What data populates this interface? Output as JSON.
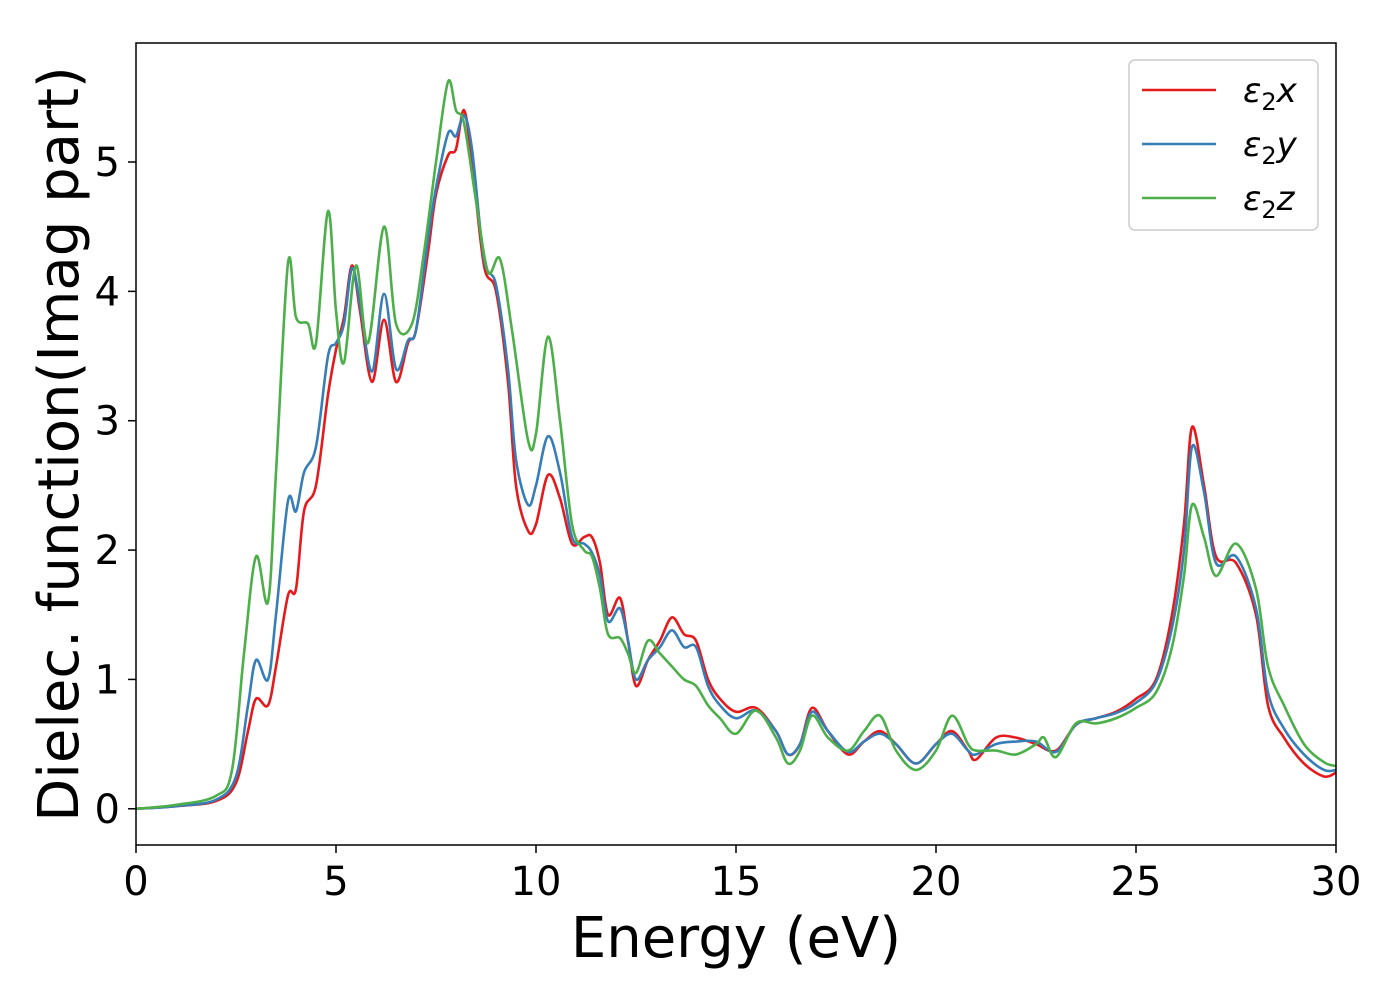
{
  "chart_data": {
    "type": "line",
    "title": "",
    "xlabel": "Energy (eV)",
    "ylabel": "Dielec. function(Imag part)",
    "xlim": [
      0,
      30
    ],
    "ylim": [
      -0.28,
      5.92
    ],
    "xticks": [
      "0",
      "5",
      "10",
      "15",
      "20",
      "25",
      "30"
    ],
    "yticks": [
      "0",
      "1",
      "2",
      "3",
      "4",
      "5"
    ],
    "grid": false,
    "legend_position": "top-right",
    "series": [
      {
        "name": "ε₂x",
        "label_base": "ε",
        "label_sub": "2",
        "label_suffix": "x",
        "color": "#e41a1c",
        "points": [
          [
            0,
            0
          ],
          [
            1,
            0.02
          ],
          [
            2,
            0.06
          ],
          [
            2.5,
            0.2
          ],
          [
            2.8,
            0.6
          ],
          [
            3.0,
            0.85
          ],
          [
            3.3,
            0.8
          ],
          [
            3.5,
            1.1
          ],
          [
            3.8,
            1.65
          ],
          [
            4.0,
            1.7
          ],
          [
            4.2,
            2.3
          ],
          [
            4.5,
            2.5
          ],
          [
            4.8,
            3.2
          ],
          [
            5.0,
            3.55
          ],
          [
            5.2,
            3.8
          ],
          [
            5.4,
            4.2
          ],
          [
            5.6,
            3.85
          ],
          [
            5.9,
            3.3
          ],
          [
            6.2,
            3.78
          ],
          [
            6.5,
            3.3
          ],
          [
            6.8,
            3.6
          ],
          [
            7.0,
            3.7
          ],
          [
            7.3,
            4.3
          ],
          [
            7.5,
            4.75
          ],
          [
            7.8,
            5.05
          ],
          [
            8.0,
            5.1
          ],
          [
            8.2,
            5.4
          ],
          [
            8.4,
            5.0
          ],
          [
            8.7,
            4.2
          ],
          [
            9.0,
            4.0
          ],
          [
            9.3,
            3.3
          ],
          [
            9.5,
            2.5
          ],
          [
            9.8,
            2.15
          ],
          [
            10.0,
            2.2
          ],
          [
            10.3,
            2.58
          ],
          [
            10.6,
            2.4
          ],
          [
            10.9,
            2.05
          ],
          [
            11.2,
            2.1
          ],
          [
            11.4,
            2.1
          ],
          [
            11.6,
            1.9
          ],
          [
            11.8,
            1.5
          ],
          [
            12.1,
            1.63
          ],
          [
            12.3,
            1.3
          ],
          [
            12.5,
            0.95
          ],
          [
            12.8,
            1.15
          ],
          [
            13.1,
            1.3
          ],
          [
            13.4,
            1.48
          ],
          [
            13.7,
            1.35
          ],
          [
            14.0,
            1.3
          ],
          [
            14.3,
            1.0
          ],
          [
            14.6,
            0.85
          ],
          [
            15.0,
            0.75
          ],
          [
            15.5,
            0.78
          ],
          [
            16.0,
            0.6
          ],
          [
            16.3,
            0.42
          ],
          [
            16.6,
            0.5
          ],
          [
            16.9,
            0.78
          ],
          [
            17.3,
            0.6
          ],
          [
            17.8,
            0.42
          ],
          [
            18.2,
            0.52
          ],
          [
            18.6,
            0.6
          ],
          [
            19.0,
            0.5
          ],
          [
            19.5,
            0.35
          ],
          [
            20.0,
            0.5
          ],
          [
            20.4,
            0.6
          ],
          [
            20.8,
            0.45
          ],
          [
            21.0,
            0.38
          ],
          [
            21.5,
            0.55
          ],
          [
            22.0,
            0.55
          ],
          [
            22.5,
            0.5
          ],
          [
            23.0,
            0.45
          ],
          [
            23.5,
            0.65
          ],
          [
            24.0,
            0.7
          ],
          [
            24.5,
            0.75
          ],
          [
            25.0,
            0.85
          ],
          [
            25.5,
            1.0
          ],
          [
            25.9,
            1.5
          ],
          [
            26.2,
            2.2
          ],
          [
            26.4,
            2.95
          ],
          [
            26.7,
            2.5
          ],
          [
            27.0,
            1.95
          ],
          [
            27.5,
            1.9
          ],
          [
            28.0,
            1.5
          ],
          [
            28.3,
            0.8
          ],
          [
            28.7,
            0.55
          ],
          [
            29.2,
            0.35
          ],
          [
            29.7,
            0.25
          ],
          [
            30.0,
            0.28
          ]
        ]
      },
      {
        "name": "ε₂y",
        "label_base": "ε",
        "label_sub": "2",
        "label_suffix": "y",
        "color": "#377eb8",
        "points": [
          [
            0,
            0
          ],
          [
            1,
            0.02
          ],
          [
            2,
            0.07
          ],
          [
            2.5,
            0.25
          ],
          [
            2.8,
            0.8
          ],
          [
            3.0,
            1.15
          ],
          [
            3.3,
            1.0
          ],
          [
            3.5,
            1.5
          ],
          [
            3.8,
            2.38
          ],
          [
            4.0,
            2.3
          ],
          [
            4.2,
            2.6
          ],
          [
            4.5,
            2.8
          ],
          [
            4.8,
            3.5
          ],
          [
            5.0,
            3.6
          ],
          [
            5.2,
            3.75
          ],
          [
            5.4,
            4.18
          ],
          [
            5.6,
            3.9
          ],
          [
            5.9,
            3.38
          ],
          [
            6.2,
            3.98
          ],
          [
            6.5,
            3.4
          ],
          [
            6.8,
            3.62
          ],
          [
            7.0,
            3.7
          ],
          [
            7.3,
            4.4
          ],
          [
            7.5,
            4.8
          ],
          [
            7.8,
            5.22
          ],
          [
            8.0,
            5.2
          ],
          [
            8.2,
            5.36
          ],
          [
            8.4,
            5.1
          ],
          [
            8.7,
            4.25
          ],
          [
            9.0,
            4.05
          ],
          [
            9.3,
            3.4
          ],
          [
            9.5,
            2.7
          ],
          [
            9.8,
            2.35
          ],
          [
            10.0,
            2.5
          ],
          [
            10.3,
            2.88
          ],
          [
            10.6,
            2.6
          ],
          [
            10.9,
            2.1
          ],
          [
            11.2,
            2.05
          ],
          [
            11.4,
            1.98
          ],
          [
            11.6,
            1.8
          ],
          [
            11.8,
            1.45
          ],
          [
            12.1,
            1.55
          ],
          [
            12.3,
            1.3
          ],
          [
            12.5,
            1.0
          ],
          [
            12.8,
            1.15
          ],
          [
            13.1,
            1.25
          ],
          [
            13.4,
            1.38
          ],
          [
            13.7,
            1.25
          ],
          [
            14.0,
            1.25
          ],
          [
            14.3,
            0.95
          ],
          [
            14.6,
            0.8
          ],
          [
            15.0,
            0.7
          ],
          [
            15.5,
            0.76
          ],
          [
            16.0,
            0.6
          ],
          [
            16.3,
            0.42
          ],
          [
            16.6,
            0.5
          ],
          [
            16.9,
            0.75
          ],
          [
            17.3,
            0.6
          ],
          [
            17.8,
            0.44
          ],
          [
            18.2,
            0.52
          ],
          [
            18.6,
            0.58
          ],
          [
            19.0,
            0.5
          ],
          [
            19.5,
            0.35
          ],
          [
            20.0,
            0.5
          ],
          [
            20.4,
            0.58
          ],
          [
            20.8,
            0.45
          ],
          [
            21.0,
            0.42
          ],
          [
            21.5,
            0.5
          ],
          [
            22.0,
            0.52
          ],
          [
            22.5,
            0.52
          ],
          [
            23.0,
            0.44
          ],
          [
            23.5,
            0.65
          ],
          [
            24.0,
            0.7
          ],
          [
            24.5,
            0.74
          ],
          [
            25.0,
            0.82
          ],
          [
            25.5,
            0.98
          ],
          [
            25.9,
            1.4
          ],
          [
            26.2,
            2.0
          ],
          [
            26.4,
            2.8
          ],
          [
            26.7,
            2.45
          ],
          [
            27.0,
            1.9
          ],
          [
            27.5,
            1.95
          ],
          [
            28.0,
            1.55
          ],
          [
            28.3,
            0.9
          ],
          [
            28.7,
            0.62
          ],
          [
            29.2,
            0.42
          ],
          [
            29.7,
            0.3
          ],
          [
            30.0,
            0.3
          ]
        ]
      },
      {
        "name": "ε₂z",
        "label_base": "ε",
        "label_sub": "2",
        "label_suffix": "z",
        "color": "#4daf4a",
        "points": [
          [
            0,
            0
          ],
          [
            1,
            0.03
          ],
          [
            2,
            0.1
          ],
          [
            2.4,
            0.3
          ],
          [
            2.7,
            1.2
          ],
          [
            3.0,
            1.95
          ],
          [
            3.3,
            1.6
          ],
          [
            3.5,
            2.6
          ],
          [
            3.8,
            4.22
          ],
          [
            4.0,
            3.8
          ],
          [
            4.3,
            3.75
          ],
          [
            4.5,
            3.6
          ],
          [
            4.8,
            4.62
          ],
          [
            5.0,
            3.85
          ],
          [
            5.2,
            3.45
          ],
          [
            5.5,
            4.2
          ],
          [
            5.8,
            3.6
          ],
          [
            6.2,
            4.5
          ],
          [
            6.5,
            3.75
          ],
          [
            6.9,
            3.75
          ],
          [
            7.2,
            4.3
          ],
          [
            7.5,
            5.0
          ],
          [
            7.8,
            5.62
          ],
          [
            8.0,
            5.4
          ],
          [
            8.2,
            5.3
          ],
          [
            8.5,
            4.7
          ],
          [
            8.8,
            4.15
          ],
          [
            9.1,
            4.25
          ],
          [
            9.4,
            3.7
          ],
          [
            9.8,
            2.85
          ],
          [
            10.0,
            2.9
          ],
          [
            10.3,
            3.65
          ],
          [
            10.6,
            3.0
          ],
          [
            10.9,
            2.2
          ],
          [
            11.2,
            2.0
          ],
          [
            11.4,
            1.95
          ],
          [
            11.6,
            1.7
          ],
          [
            11.8,
            1.35
          ],
          [
            12.1,
            1.32
          ],
          [
            12.3,
            1.2
          ],
          [
            12.5,
            1.05
          ],
          [
            12.8,
            1.3
          ],
          [
            13.1,
            1.2
          ],
          [
            13.4,
            1.1
          ],
          [
            13.7,
            1.0
          ],
          [
            14.0,
            0.95
          ],
          [
            14.3,
            0.8
          ],
          [
            14.6,
            0.7
          ],
          [
            15.0,
            0.58
          ],
          [
            15.5,
            0.76
          ],
          [
            16.0,
            0.55
          ],
          [
            16.3,
            0.35
          ],
          [
            16.6,
            0.45
          ],
          [
            16.9,
            0.72
          ],
          [
            17.3,
            0.55
          ],
          [
            17.8,
            0.45
          ],
          [
            18.2,
            0.6
          ],
          [
            18.6,
            0.72
          ],
          [
            19.0,
            0.45
          ],
          [
            19.5,
            0.3
          ],
          [
            20.0,
            0.45
          ],
          [
            20.4,
            0.72
          ],
          [
            20.8,
            0.5
          ],
          [
            21.0,
            0.45
          ],
          [
            21.5,
            0.45
          ],
          [
            22.0,
            0.42
          ],
          [
            22.5,
            0.5
          ],
          [
            22.7,
            0.55
          ],
          [
            23.0,
            0.4
          ],
          [
            23.5,
            0.66
          ],
          [
            24.0,
            0.66
          ],
          [
            24.5,
            0.7
          ],
          [
            25.0,
            0.78
          ],
          [
            25.5,
            0.9
          ],
          [
            25.9,
            1.25
          ],
          [
            26.2,
            1.8
          ],
          [
            26.4,
            2.35
          ],
          [
            26.7,
            2.1
          ],
          [
            27.0,
            1.8
          ],
          [
            27.5,
            2.05
          ],
          [
            28.0,
            1.7
          ],
          [
            28.3,
            1.1
          ],
          [
            28.7,
            0.8
          ],
          [
            29.2,
            0.5
          ],
          [
            29.7,
            0.36
          ],
          [
            30.0,
            0.33
          ]
        ]
      }
    ]
  }
}
